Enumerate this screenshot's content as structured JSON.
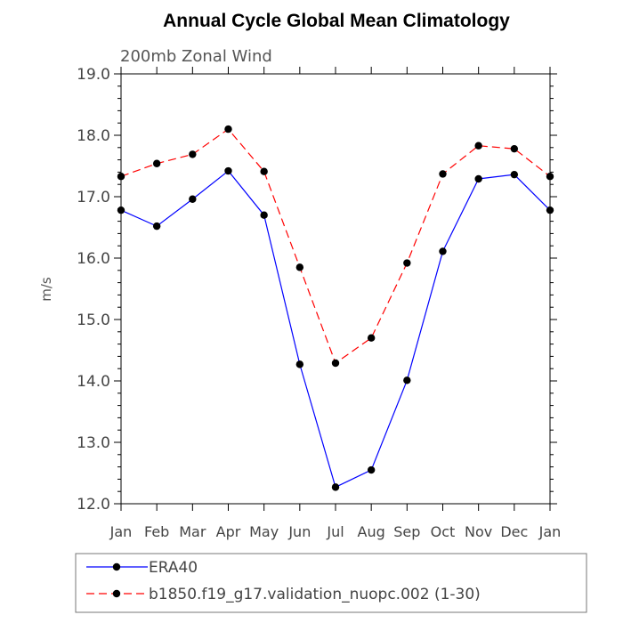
{
  "chart_data": {
    "type": "line",
    "title": "Annual Cycle Global Mean Climatology",
    "subtitle": "200mb Zonal Wind",
    "xlabel": "",
    "ylabel": "m/s",
    "ylim": [
      12.0,
      19.0
    ],
    "yticks": [
      "12.0",
      "13.0",
      "14.0",
      "15.0",
      "16.0",
      "17.0",
      "18.0",
      "19.0"
    ],
    "categories": [
      "Jan",
      "Feb",
      "Mar",
      "Apr",
      "May",
      "Jun",
      "Jul",
      "Aug",
      "Sep",
      "Oct",
      "Nov",
      "Dec",
      "Jan"
    ],
    "grid": false,
    "legend_position": "bottom",
    "series": [
      {
        "name": "ERA40",
        "color": "#0000ff",
        "line_style": "solid",
        "marker": "filled-circle",
        "values": [
          16.78,
          16.52,
          16.96,
          17.42,
          16.7,
          14.27,
          12.27,
          12.55,
          14.01,
          16.11,
          17.29,
          17.36,
          16.78
        ]
      },
      {
        "name": "b1850.f19_g17.validation_nuopc.002 (1-30)",
        "color": "#ff0000",
        "line_style": "dashed",
        "marker": "filled-circle",
        "values": [
          17.33,
          17.54,
          17.69,
          18.1,
          17.41,
          15.85,
          14.29,
          14.7,
          15.92,
          17.37,
          17.83,
          17.78,
          17.33
        ]
      }
    ]
  }
}
